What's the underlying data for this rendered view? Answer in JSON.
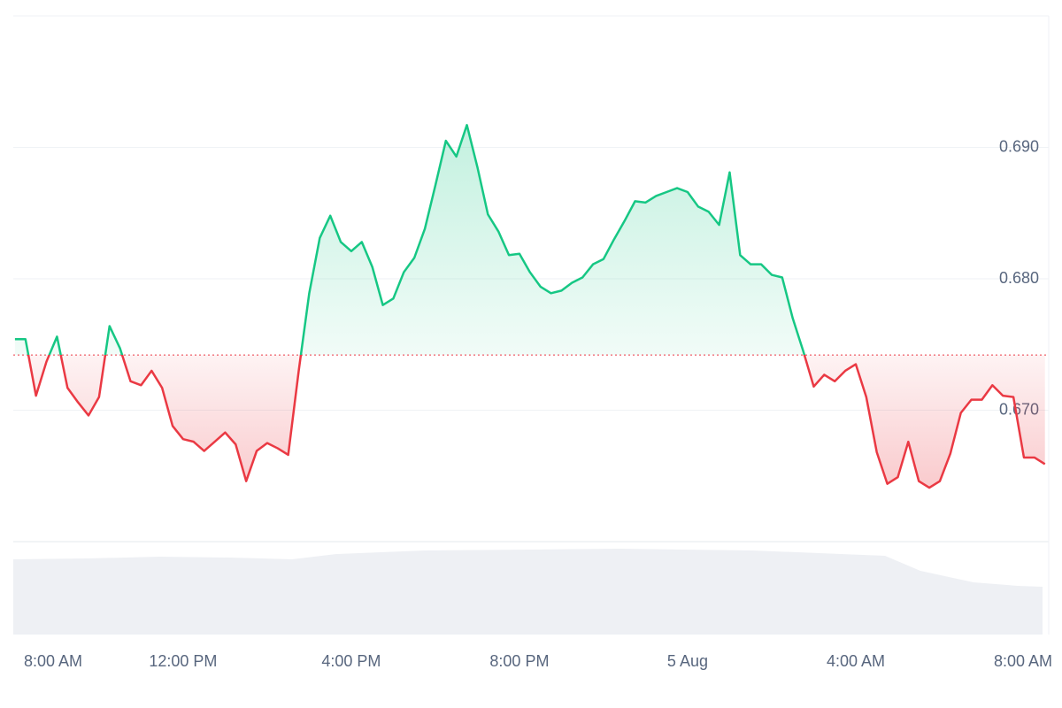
{
  "chart_data": {
    "type": "line",
    "x": [
      8,
      8.25,
      8.5,
      8.75,
      9,
      9.25,
      9.5,
      9.75,
      10,
      10.25,
      10.5,
      10.75,
      11,
      11.25,
      11.5,
      11.75,
      12,
      12.25,
      12.5,
      12.75,
      13,
      13.25,
      13.5,
      13.75,
      14,
      14.25,
      14.5,
      14.75,
      15,
      15.25,
      15.5,
      15.75,
      16,
      16.25,
      16.5,
      16.75,
      17,
      17.25,
      17.5,
      17.75,
      18,
      18.25,
      18.5,
      18.75,
      19,
      19.25,
      19.5,
      19.75,
      20,
      20.25,
      20.5,
      20.75,
      21,
      21.25,
      21.5,
      21.75,
      22,
      22.25,
      22.5,
      22.75,
      23,
      23.25,
      23.5,
      23.75,
      24,
      24.25,
      24.5,
      24.75,
      25,
      25.25,
      25.5,
      25.75,
      26,
      26.25,
      26.5,
      26.75,
      27,
      27.25,
      27.5,
      27.75,
      28,
      28.25,
      28.5,
      28.75,
      29,
      29.25,
      29.5,
      29.75,
      30,
      30.25,
      30.5,
      30.75,
      31,
      31.25,
      31.5,
      31.75,
      32,
      32.25,
      32.5
    ],
    "values": [
      0.6754,
      0.6754,
      0.6711,
      0.6737,
      0.6756,
      0.6717,
      0.6706,
      0.6696,
      0.671,
      0.6764,
      0.6747,
      0.6722,
      0.6719,
      0.673,
      0.6717,
      0.6688,
      0.6678,
      0.6676,
      0.6669,
      0.6676,
      0.6683,
      0.6674,
      0.6646,
      0.6669,
      0.6675,
      0.6671,
      0.6666,
      0.673,
      0.6789,
      0.6831,
      0.6848,
      0.6828,
      0.6821,
      0.6828,
      0.6809,
      0.678,
      0.6785,
      0.6805,
      0.6816,
      0.6838,
      0.6871,
      0.6905,
      0.6893,
      0.6917,
      0.6885,
      0.6849,
      0.6836,
      0.6818,
      0.6819,
      0.6805,
      0.6794,
      0.6789,
      0.6791,
      0.6797,
      0.6801,
      0.6811,
      0.6815,
      0.683,
      0.6844,
      0.6859,
      0.6858,
      0.6863,
      0.6866,
      0.6869,
      0.6866,
      0.6855,
      0.6851,
      0.6841,
      0.6881,
      0.6818,
      0.6811,
      0.6811,
      0.6803,
      0.6801,
      0.677,
      0.6745,
      0.6718,
      0.6727,
      0.6722,
      0.673,
      0.6735,
      0.671,
      0.6668,
      0.6644,
      0.6649,
      0.6676,
      0.6646,
      0.6641,
      0.6646,
      0.6667,
      0.6698,
      0.6708,
      0.6708,
      0.6719,
      0.6711,
      0.671,
      0.6664,
      0.6664,
      0.6659
    ],
    "baseline": 0.6742,
    "up_color": "#16c784",
    "down_color": "#ea3943",
    "xlim": [
      7.96,
      32.59
    ],
    "xticks": [
      {
        "value": 8,
        "label": "8:00 AM"
      },
      {
        "value": 12,
        "label": "12:00 PM"
      },
      {
        "value": 16,
        "label": "4:00 PM"
      },
      {
        "value": 20,
        "label": "8:00 PM"
      },
      {
        "value": 24,
        "label": "5 Aug"
      },
      {
        "value": 28,
        "label": "4:00 AM"
      },
      {
        "value": 32,
        "label": "8:00 AM"
      }
    ],
    "ylim": [
      0.66,
      0.7
    ],
    "yticks": [
      {
        "value": 0.67,
        "label": "0.670"
      },
      {
        "value": 0.68,
        "label": "0.680"
      },
      {
        "value": 0.69,
        "label": "0.690"
      }
    ],
    "grid": true
  }
}
